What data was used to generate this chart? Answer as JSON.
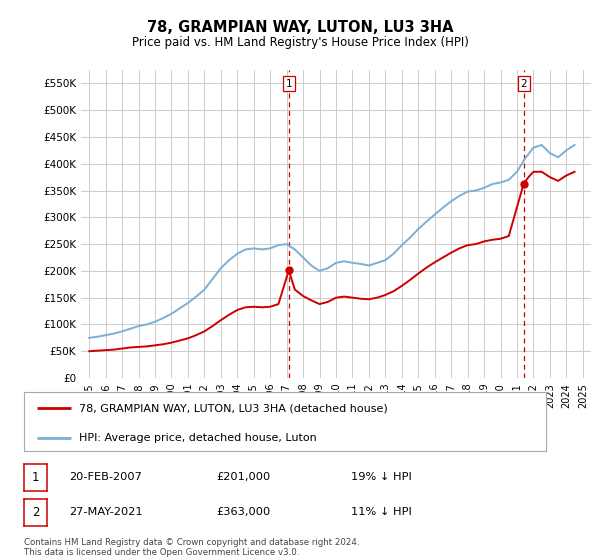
{
  "title": "78, GRAMPIAN WAY, LUTON, LU3 3HA",
  "subtitle": "Price paid vs. HM Land Registry's House Price Index (HPI)",
  "legend_label_red": "78, GRAMPIAN WAY, LUTON, LU3 3HA (detached house)",
  "legend_label_blue": "HPI: Average price, detached house, Luton",
  "annotation1_date": "20-FEB-2007",
  "annotation1_price": "£201,000",
  "annotation1_pct": "19% ↓ HPI",
  "annotation2_date": "27-MAY-2021",
  "annotation2_price": "£363,000",
  "annotation2_pct": "11% ↓ HPI",
  "footnote": "Contains HM Land Registry data © Crown copyright and database right 2024.\nThis data is licensed under the Open Government Licence v3.0.",
  "ylim": [
    0,
    575000
  ],
  "yticks": [
    0,
    50000,
    100000,
    150000,
    200000,
    250000,
    300000,
    350000,
    400000,
    450000,
    500000,
    550000
  ],
  "ytick_labels": [
    "£0",
    "£50K",
    "£100K",
    "£150K",
    "£200K",
    "£250K",
    "£300K",
    "£350K",
    "£400K",
    "£450K",
    "£500K",
    "£550K"
  ],
  "color_red": "#cc0000",
  "color_blue": "#7bafd4",
  "color_grid": "#cccccc",
  "color_bg": "#ffffff",
  "sale1_x": 2007.13,
  "sale1_y": 201000,
  "sale2_x": 2021.41,
  "sale2_y": 363000,
  "hpi_x": [
    1995,
    1995.5,
    1996,
    1996.5,
    1997,
    1997.5,
    1998,
    1998.5,
    1999,
    1999.5,
    2000,
    2000.5,
    2001,
    2001.5,
    2002,
    2002.5,
    2003,
    2003.5,
    2004,
    2004.5,
    2005,
    2005.5,
    2006,
    2006.5,
    2007,
    2007.5,
    2008,
    2008.5,
    2009,
    2009.5,
    2010,
    2010.5,
    2011,
    2011.5,
    2012,
    2012.5,
    2013,
    2013.5,
    2014,
    2014.5,
    2015,
    2015.5,
    2016,
    2016.5,
    2017,
    2017.5,
    2018,
    2018.5,
    2019,
    2019.5,
    2020,
    2020.5,
    2021,
    2021.5,
    2022,
    2022.5,
    2023,
    2023.5,
    2024,
    2024.5
  ],
  "hpi_y": [
    75000,
    77000,
    80000,
    83000,
    87000,
    92000,
    97000,
    100000,
    105000,
    112000,
    120000,
    130000,
    140000,
    152000,
    165000,
    185000,
    205000,
    220000,
    232000,
    240000,
    242000,
    240000,
    242000,
    248000,
    250000,
    240000,
    225000,
    210000,
    200000,
    205000,
    215000,
    218000,
    215000,
    213000,
    210000,
    215000,
    220000,
    232000,
    248000,
    262000,
    278000,
    292000,
    305000,
    318000,
    330000,
    340000,
    348000,
    350000,
    355000,
    362000,
    365000,
    370000,
    385000,
    410000,
    430000,
    435000,
    420000,
    412000,
    425000,
    435000
  ],
  "red_x": [
    1995,
    1995.5,
    1996,
    1996.5,
    1997,
    1997.5,
    1998,
    1998.5,
    1999,
    1999.5,
    2000,
    2000.5,
    2001,
    2001.5,
    2002,
    2002.5,
    2003,
    2003.5,
    2004,
    2004.5,
    2005,
    2005.5,
    2006,
    2006.5,
    2007.13,
    2007.5,
    2008,
    2008.5,
    2009,
    2009.5,
    2010,
    2010.5,
    2011,
    2011.5,
    2012,
    2012.5,
    2013,
    2013.5,
    2014,
    2014.5,
    2015,
    2015.5,
    2016,
    2016.5,
    2017,
    2017.5,
    2018,
    2018.5,
    2019,
    2019.5,
    2020,
    2020.5,
    2021.41,
    2021.7,
    2022,
    2022.5,
    2023,
    2023.5,
    2024,
    2024.5
  ],
  "red_y": [
    50000,
    51000,
    52000,
    53000,
    55000,
    57000,
    58000,
    59000,
    61000,
    63000,
    66000,
    70000,
    74000,
    80000,
    87000,
    97000,
    108000,
    118000,
    127000,
    132000,
    133000,
    132000,
    133000,
    138000,
    201000,
    165000,
    153000,
    145000,
    138000,
    142000,
    150000,
    152000,
    150000,
    148000,
    147000,
    150000,
    155000,
    162000,
    172000,
    183000,
    195000,
    206000,
    216000,
    225000,
    234000,
    242000,
    248000,
    250000,
    255000,
    258000,
    260000,
    265000,
    363000,
    375000,
    385000,
    385000,
    375000,
    368000,
    378000,
    385000
  ],
  "xmin": 1994.5,
  "xmax": 2025.5,
  "xtick_years": [
    1995,
    1996,
    1997,
    1998,
    1999,
    2000,
    2001,
    2002,
    2003,
    2004,
    2005,
    2006,
    2007,
    2008,
    2009,
    2010,
    2011,
    2012,
    2013,
    2014,
    2015,
    2016,
    2017,
    2018,
    2019,
    2020,
    2021,
    2022,
    2023,
    2024,
    2025
  ]
}
